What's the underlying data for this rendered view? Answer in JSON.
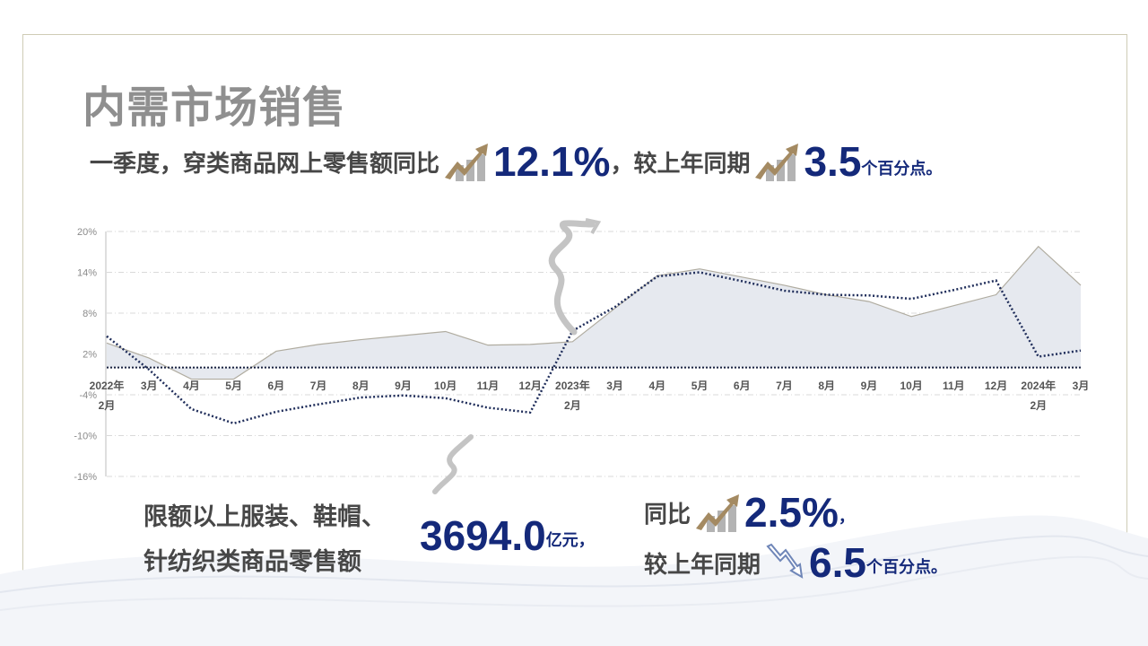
{
  "title": "内需市场销售",
  "headline": {
    "prefix": "一季度，穿类商品网上零售额同比",
    "growth_icon": "rising-arrow-chart-icon",
    "growth_value": "12.1%",
    "mid": "，较上年同期",
    "delta_icon": "rising-arrow-chart-icon",
    "delta_value": "3.5",
    "delta_unit": "个百分点。"
  },
  "bottom": {
    "label_line1": "限额以上服装、鞋帽、",
    "label_line2": "针纺织类商品零售额",
    "amount": "3694.0",
    "amount_unit": "亿元，",
    "yoy_label": "同比",
    "yoy_icon": "rising-arrow-chart-icon",
    "yoy_value": "2.5%",
    "yoy_suffix": "，",
    "compare_label": "较上年同期",
    "compare_icon": "falling-arrow-icon",
    "compare_value": "6.5",
    "compare_unit": "个百分点。"
  },
  "colors": {
    "accent_navy": "#14297a",
    "gold": "#a48a62",
    "area_fill": "#e6e9ef",
    "area_line": "#b0aca0",
    "dotted_line": "#1f2d5a"
  },
  "chart_data": {
    "type": "area",
    "grid": true,
    "ylim": [
      -16,
      20
    ],
    "yticks": [
      "20%",
      "14%",
      "8%",
      "2%",
      "-4%",
      "-10%",
      "-16%"
    ],
    "ytick_values": [
      20,
      14,
      8,
      2,
      -4,
      -10,
      -16
    ],
    "categories": [
      [
        "2022年",
        "2月"
      ],
      [
        "3月"
      ],
      [
        "4月"
      ],
      [
        "5月"
      ],
      [
        "6月"
      ],
      [
        "7月"
      ],
      [
        "8月"
      ],
      [
        "9月"
      ],
      [
        "10月"
      ],
      [
        "11月"
      ],
      [
        "12月"
      ],
      [
        "2023年",
        "2月"
      ],
      [
        "3月"
      ],
      [
        "4月"
      ],
      [
        "5月"
      ],
      [
        "6月"
      ],
      [
        "7月"
      ],
      [
        "8月"
      ],
      [
        "9月"
      ],
      [
        "10月"
      ],
      [
        "11月"
      ],
      [
        "12月"
      ],
      [
        "2024年",
        "2月"
      ],
      [
        "3月"
      ]
    ],
    "series": [
      {
        "style": "area",
        "values": [
          3.6,
          1.4,
          -1.7,
          -1.7,
          2.4,
          3.4,
          4.1,
          4.7,
          5.3,
          3.3,
          3.4,
          3.8,
          8.7,
          13.5,
          14.5,
          13.3,
          12.1,
          10.7,
          9.7,
          7.5,
          9.1,
          10.7,
          17.8,
          12.1
        ]
      },
      {
        "style": "dotted",
        "values": [
          4.6,
          -0.3,
          -6.1,
          -8.2,
          -6.5,
          -5.4,
          -4.4,
          -4.1,
          -4.5,
          -5.9,
          -6.6,
          5.4,
          8.9,
          13.4,
          14.0,
          12.7,
          11.3,
          10.7,
          10.6,
          10.1,
          11.4,
          12.8,
          1.6,
          2.5
        ]
      }
    ]
  }
}
